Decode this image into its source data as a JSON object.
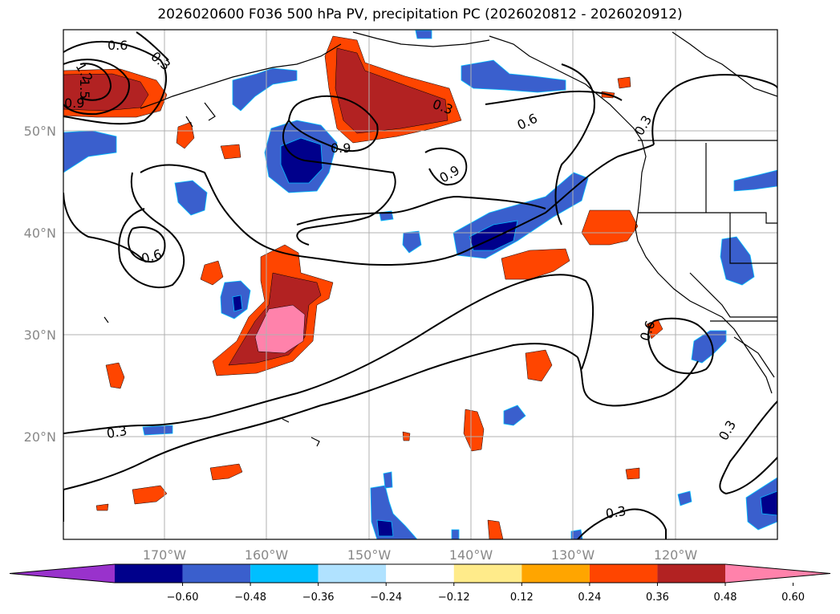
{
  "title": "2026020600 F036 500 hPa PV, precipitation PC (2026020812 - 2026020912)",
  "map": {
    "lat_labels": [
      "50°N",
      "40°N",
      "30°N",
      "20°N"
    ],
    "lon_labels": [
      "170°W",
      "160°W",
      "150°W",
      "140°W",
      "130°W",
      "120°W"
    ],
    "contour_labels": [
      "0.6",
      "0.3",
      "1.2",
      "1.5",
      "0.9",
      "0.9",
      "0.3",
      "0.6",
      "0.3",
      "0.9",
      "0.6",
      "0.6",
      "0.3",
      "0.3",
      "0.3"
    ]
  },
  "colorbar": {
    "ticks": [
      "−0.60",
      "−0.48",
      "−0.36",
      "−0.24",
      "−0.12",
      "0.12",
      "0.24",
      "0.36",
      "0.48",
      "0.60"
    ],
    "colors": [
      "#9932cc",
      "#00008b",
      "#3a5fcd",
      "#00bfff",
      "#b0e2ff",
      "#ffffff",
      "#ffeb8a",
      "#ffa500",
      "#ff4500",
      "#b22222",
      "#ff82ab"
    ]
  }
}
